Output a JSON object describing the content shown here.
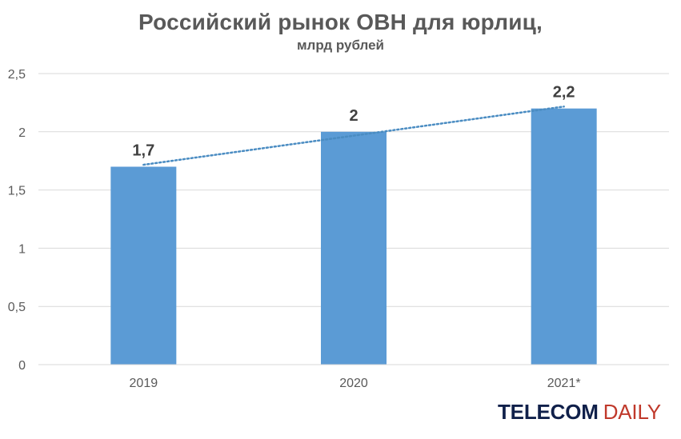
{
  "chart_data": {
    "type": "bar",
    "title": "Российский рынок ОВН для юрлиц,",
    "subtitle": "млрд рублей",
    "categories": [
      "2019",
      "2020",
      "2021*"
    ],
    "values": [
      1.7,
      2,
      2.2
    ],
    "data_labels": [
      "1,7",
      "2",
      "2,2"
    ],
    "y_ticks": [
      0,
      0.5,
      1,
      1.5,
      2,
      2.5
    ],
    "y_tick_labels": [
      "0",
      "0,5",
      "1",
      "1,5",
      "2",
      "2,5"
    ],
    "ylim": [
      0,
      2.5
    ],
    "grid": true,
    "trendline": "linear, dotted",
    "colors": {
      "bar": "#5b9bd5",
      "trendline": "#4a8cc2",
      "grid": "#d9d9d9",
      "text": "#595959",
      "label": "#404040"
    }
  },
  "brand": {
    "part1": "TELECOM",
    "part2": "DAILY"
  }
}
